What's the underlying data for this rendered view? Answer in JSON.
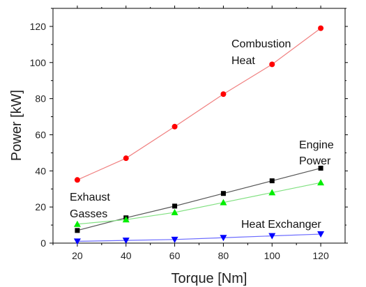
{
  "chart_data": {
    "type": "line",
    "xlabel": "Torque [Nm]",
    "ylabel": "Power [kW]",
    "xlim": [
      10,
      130
    ],
    "ylim": [
      0,
      130
    ],
    "x_ticks": [
      20,
      40,
      60,
      80,
      100,
      120
    ],
    "y_ticks": [
      0,
      20,
      40,
      60,
      80,
      100,
      120
    ],
    "grid": false,
    "x": [
      20,
      40,
      60,
      80,
      100,
      120
    ],
    "series": [
      {
        "name": "Combustion Heat",
        "marker": "circle",
        "color": "#ff0000",
        "line_color": "#f08080",
        "values": [
          35,
          47,
          64.5,
          82.5,
          99,
          119
        ]
      },
      {
        "name": "Engine Power",
        "marker": "square",
        "color": "#000000",
        "line_color": "#555555",
        "values": [
          7,
          14,
          20.5,
          27.5,
          34.5,
          41.5
        ]
      },
      {
        "name": "Exhaust Gasses",
        "marker": "triangle-up",
        "color": "#00ee00",
        "line_color": "#80e080",
        "values": [
          10.5,
          13,
          17,
          22.5,
          28,
          33.5
        ]
      },
      {
        "name": "Heat Exchanger",
        "marker": "triangle-down",
        "color": "#0000ff",
        "line_color": "#6a6aff",
        "values": [
          1,
          1.5,
          2,
          3,
          4,
          5
        ]
      }
    ],
    "annotations": [
      {
        "lines": [
          "Combustion",
          "Heat"
        ]
      },
      {
        "lines": [
          "Engine",
          "Power"
        ]
      },
      {
        "lines": [
          "Exhaust",
          "Gasses"
        ]
      },
      {
        "lines": [
          "Heat Exchanger"
        ]
      }
    ]
  }
}
